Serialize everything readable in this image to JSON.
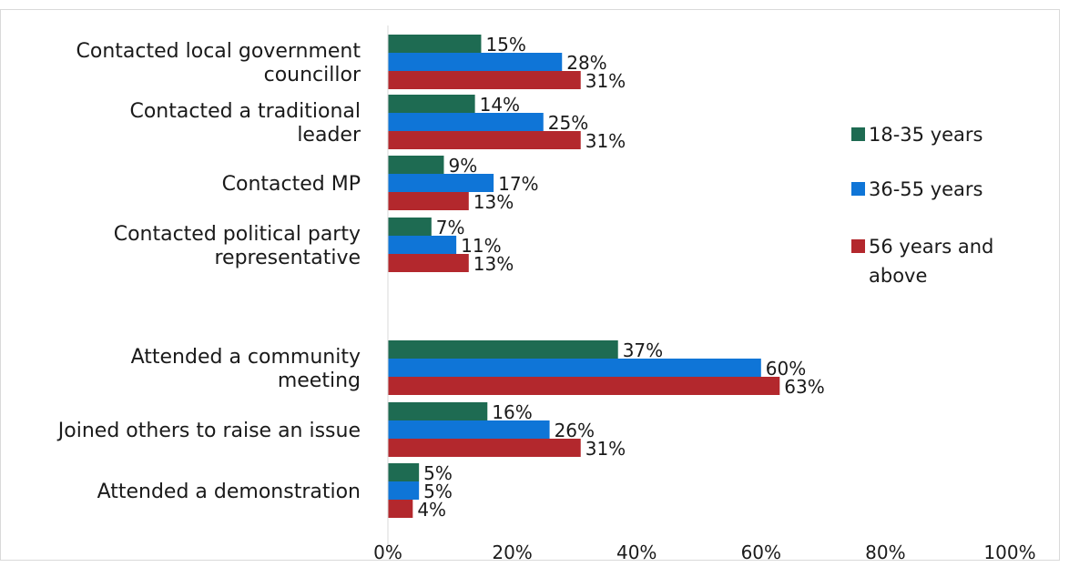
{
  "chart_data": {
    "type": "bar",
    "orientation": "horizontal",
    "categories": [
      [
        "Contacted local government",
        "councillor"
      ],
      [
        "Contacted a traditional",
        "leader"
      ],
      [
        "Contacted MP"
      ],
      [
        "Contacted political party",
        "representative"
      ],
      [
        "Attended a community",
        "meeting"
      ],
      [
        "Joined others to raise an issue"
      ],
      [
        "Attended a demonstration"
      ]
    ],
    "series": [
      {
        "name": "18-35 years",
        "color": "#1e6b52",
        "values": [
          15,
          14,
          9,
          7,
          37,
          16,
          5
        ],
        "labels": [
          "15%",
          "14%",
          "9%",
          "7%",
          "37%",
          "16%",
          "5%"
        ]
      },
      {
        "name": "36-55 years",
        "color": "#0f75d7",
        "values": [
          28,
          25,
          17,
          11,
          60,
          26,
          5
        ],
        "labels": [
          "28%",
          "25%",
          "17%",
          "11%",
          "60%",
          "26%",
          "5%"
        ]
      },
      {
        "name": "56 years and above",
        "color": "#b3282d",
        "values": [
          31,
          31,
          13,
          13,
          63,
          31,
          4
        ],
        "labels": [
          "31%",
          "31%",
          "13%",
          "13%",
          "63%",
          "31%",
          "4%"
        ]
      }
    ],
    "legend": {
      "placement": "right",
      "entries": [
        [
          "18-35 years"
        ],
        [
          "36-55 years"
        ],
        [
          "56 years and",
          "above"
        ]
      ]
    },
    "xticks": [
      "0%",
      "20%",
      "40%",
      "60%",
      "80%",
      "100%"
    ],
    "xlim": [
      0,
      100
    ],
    "grid": false
  }
}
